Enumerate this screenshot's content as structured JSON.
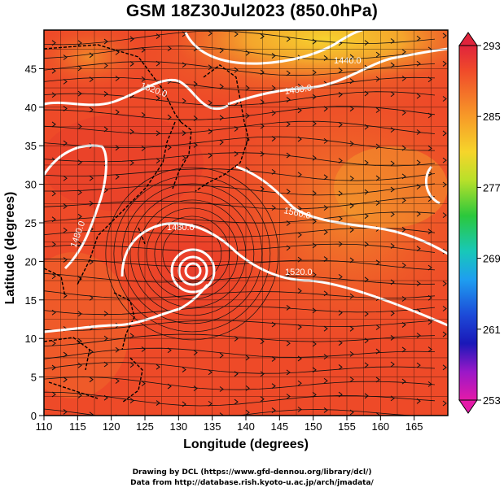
{
  "title": "GSM 18Z30Jul2023 (850.0hPa)",
  "xlabel": "Longitude (degrees)",
  "ylabel": "Latitude  (degrees)",
  "credit_line1": "Drawing by DCL (https://www.gfd-dennou.org/library/dcl/)",
  "credit_line2": "Data from http://database.rish.kyoto-u.ac.jp/arch/jmadata/",
  "x_ticks": [
    "110",
    "115",
    "120",
    "125",
    "130",
    "135",
    "140",
    "145",
    "150",
    "155",
    "160",
    "165"
  ],
  "y_ticks": [
    "0",
    "5",
    "10",
    "15",
    "20",
    "25",
    "30",
    "35",
    "40",
    "45"
  ],
  "colorbar_labels": [
    "293",
    "285",
    "277",
    "269",
    "261",
    "253"
  ],
  "contour_labels": [
    "1520.0",
    "1480.0",
    "1440.0",
    "1560.0",
    "1480.0",
    "1520.0",
    "1480.0"
  ],
  "colors": {
    "field_main": "#ee4a28",
    "field_warm": "#f07a2a",
    "field_hot": "#f5c22c",
    "contour": "#ffffff",
    "streamline": "#111111"
  },
  "chart_data": {
    "type": "heatmap",
    "title": "GSM 18Z30Jul2023 (850.0hPa)",
    "xlabel": "Longitude (degrees)",
    "ylabel": "Latitude  (degrees)",
    "xlim": [
      110,
      170
    ],
    "ylim": [
      0,
      50
    ],
    "colorbar_range": [
      253,
      293
    ],
    "colorbar_ticks": [
      293,
      285,
      277,
      269,
      261,
      253
    ],
    "contour_levels": [
      1440,
      1480,
      1520,
      1560
    ],
    "typhoon_center": [
      132,
      21
    ]
  }
}
